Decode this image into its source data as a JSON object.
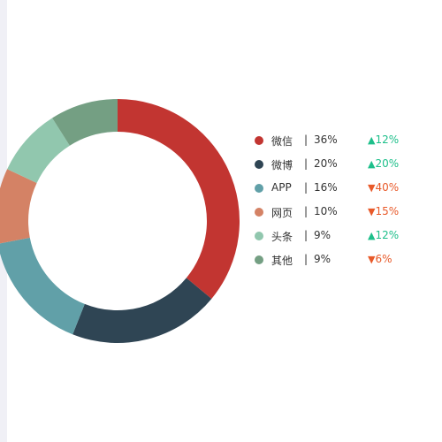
{
  "chart_data": {
    "type": "pie",
    "style": "donut",
    "series": [
      {
        "name": "微信",
        "value": 36,
        "label": "36%",
        "color": "#c23531",
        "change": "12%",
        "trend": "up"
      },
      {
        "name": "微博",
        "value": 20,
        "label": "20%",
        "color": "#2f4554",
        "change": "20%",
        "trend": "up"
      },
      {
        "name": "APP",
        "value": 16,
        "label": "16%",
        "color": "#61a0a8",
        "change": "40%",
        "trend": "down"
      },
      {
        "name": "网页",
        "value": 10,
        "label": "10%",
        "color": "#d48265",
        "change": "15%",
        "trend": "down"
      },
      {
        "name": "头条",
        "value": 9,
        "label": "9%",
        "color": "#91c7ae",
        "change": "12%",
        "trend": "up"
      },
      {
        "name": "其他",
        "value": 9,
        "label": "9%",
        "color": "#749f83",
        "change": "6%",
        "trend": "down"
      }
    ],
    "legend_placement": "right",
    "separator": "|",
    "up_color": "#1dbf8a",
    "down_color": "#e85a2a"
  }
}
